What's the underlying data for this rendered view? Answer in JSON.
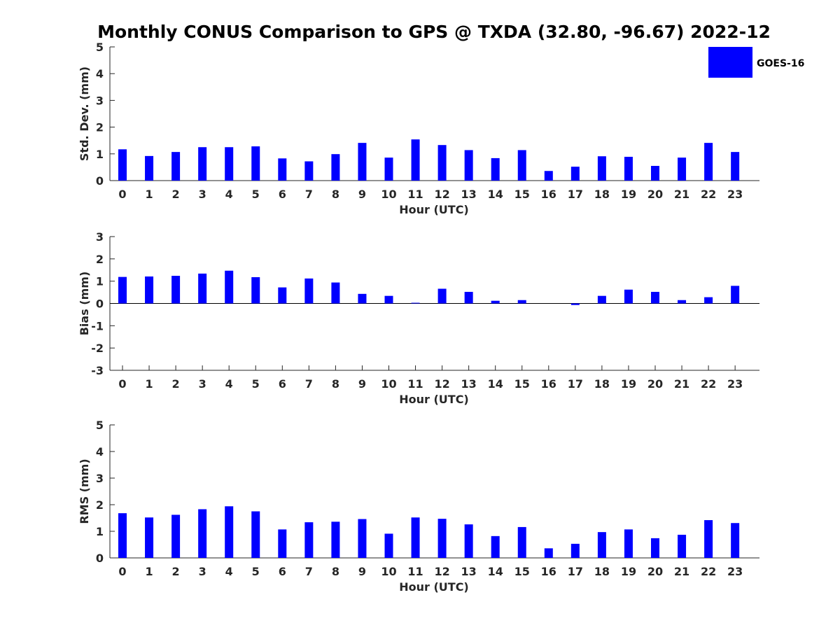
{
  "figure": {
    "title": "Monthly CONUS Comparison to GPS @ TXDA (32.80, -96.67) 2022-12",
    "legend": {
      "label": "GOES-16",
      "color": "#0000ff",
      "placement": "top-right"
    },
    "bar_color": "#0000ff"
  },
  "chart_data": [
    {
      "type": "bar",
      "categories": [
        "0",
        "1",
        "2",
        "3",
        "4",
        "5",
        "6",
        "7",
        "8",
        "9",
        "10",
        "11",
        "12",
        "13",
        "14",
        "15",
        "16",
        "17",
        "18",
        "19",
        "20",
        "21",
        "22",
        "23"
      ],
      "series": [
        {
          "name": "GOES-16",
          "values": [
            1.17,
            0.92,
            1.07,
            1.25,
            1.25,
            1.28,
            0.83,
            0.72,
            0.99,
            1.41,
            0.86,
            1.54,
            1.33,
            1.14,
            0.84,
            1.14,
            0.36,
            0.52,
            0.91,
            0.89,
            0.55,
            0.86,
            1.41,
            1.07
          ]
        }
      ],
      "xlabel": "Hour (UTC)",
      "ylabel": "Std. Dev. (mm)",
      "ylim": [
        0,
        5
      ],
      "yticks": [
        "0",
        "1",
        "2",
        "3",
        "4",
        "5"
      ],
      "grid": false,
      "legend": true
    },
    {
      "type": "bar",
      "categories": [
        "0",
        "1",
        "2",
        "3",
        "4",
        "5",
        "6",
        "7",
        "8",
        "9",
        "10",
        "11",
        "12",
        "13",
        "14",
        "15",
        "16",
        "17",
        "18",
        "19",
        "20",
        "21",
        "22",
        "23"
      ],
      "series": [
        {
          "name": "GOES-16",
          "values": [
            1.19,
            1.21,
            1.24,
            1.34,
            1.47,
            1.18,
            0.72,
            1.12,
            0.94,
            0.43,
            0.34,
            0.03,
            0.66,
            0.52,
            0.12,
            0.15,
            0.0,
            -0.07,
            0.34,
            0.62,
            0.52,
            0.15,
            0.28,
            0.79
          ]
        }
      ],
      "xlabel": "Hour (UTC)",
      "ylabel": "Bias (mm)",
      "ylim": [
        -3,
        3
      ],
      "yticks": [
        "-3",
        "-2",
        "-1",
        "0",
        "1",
        "2",
        "3"
      ],
      "grid": false,
      "legend": false
    },
    {
      "type": "bar",
      "categories": [
        "0",
        "1",
        "2",
        "3",
        "4",
        "5",
        "6",
        "7",
        "8",
        "9",
        "10",
        "11",
        "12",
        "13",
        "14",
        "15",
        "16",
        "17",
        "18",
        "19",
        "20",
        "21",
        "22",
        "23"
      ],
      "series": [
        {
          "name": "GOES-16",
          "values": [
            1.68,
            1.52,
            1.62,
            1.83,
            1.94,
            1.75,
            1.07,
            1.34,
            1.36,
            1.46,
            0.91,
            1.52,
            1.47,
            1.26,
            0.82,
            1.16,
            0.36,
            0.53,
            0.97,
            1.07,
            0.74,
            0.87,
            1.42,
            1.31
          ]
        }
      ],
      "xlabel": "Hour (UTC)",
      "ylabel": "RMS (mm)",
      "ylim": [
        0,
        5
      ],
      "yticks": [
        "0",
        "1",
        "2",
        "3",
        "4",
        "5"
      ],
      "grid": false,
      "legend": false
    }
  ]
}
